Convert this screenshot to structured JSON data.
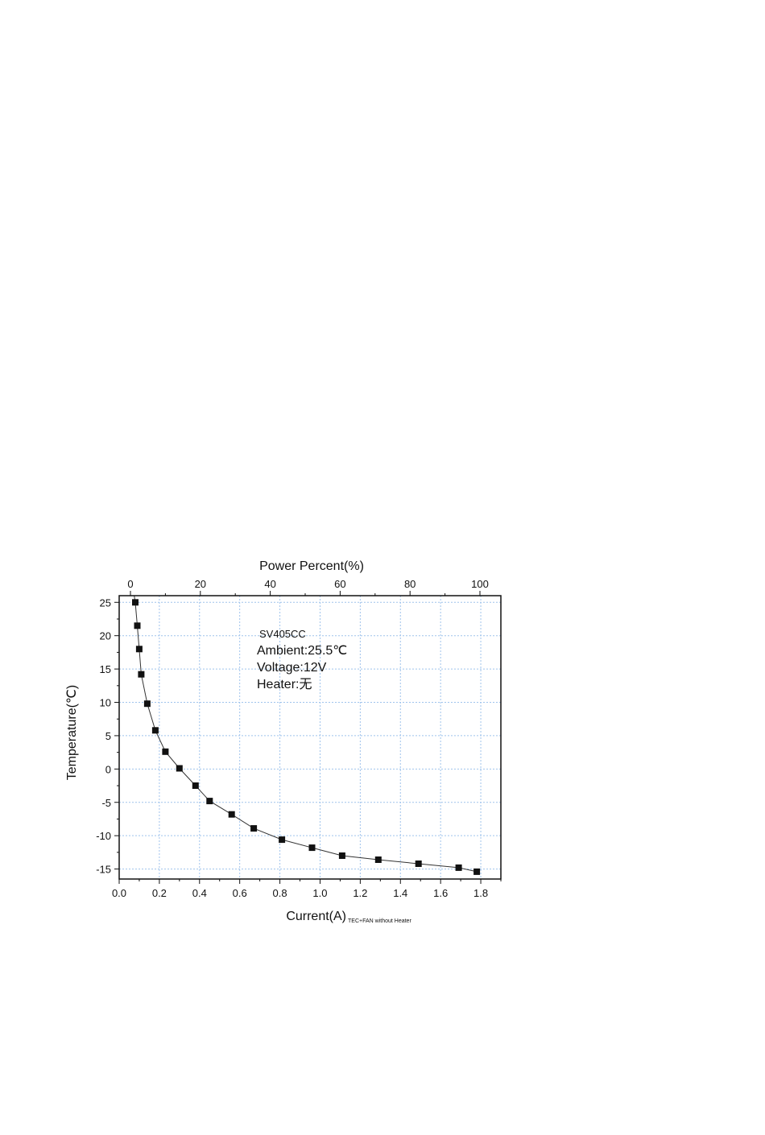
{
  "chart_data": {
    "type": "scatter",
    "xlabel": "Current(A)",
    "xlabel_subscript": "TEC+FAN without Heater",
    "ylabel": "Temperature(℃)",
    "top_xlabel": "Power Percent(%)",
    "xlim": [
      0.0,
      1.9
    ],
    "ylim": [
      -16.5,
      26
    ],
    "top_xlim": [
      0,
      100
    ],
    "x_ticks": [
      "0.0",
      "0.2",
      "0.4",
      "0.6",
      "0.8",
      "1.0",
      "1.2",
      "1.4",
      "1.6",
      "1.8"
    ],
    "y_ticks": [
      "25",
      "20",
      "15",
      "10",
      "5",
      "0",
      "-5",
      "-10",
      "-15"
    ],
    "top_ticks": [
      "0",
      "20",
      "40",
      "60",
      "80",
      "100"
    ],
    "grid": true,
    "series": [
      {
        "x": [
          0.08,
          0.09,
          0.1,
          0.11,
          0.14,
          0.18,
          0.23,
          0.3,
          0.38,
          0.45,
          0.56,
          0.67,
          0.81,
          0.96,
          1.11,
          1.29,
          1.49,
          1.69,
          1.78
        ],
        "y": [
          25,
          21.5,
          18,
          14.2,
          9.8,
          5.8,
          2.6,
          0.1,
          -2.5,
          -4.8,
          -6.8,
          -8.9,
          -10.6,
          -11.8,
          -13.0,
          -13.6,
          -14.2,
          -14.8,
          -15.4
        ]
      }
    ],
    "annotations": [
      "SV405CC",
      "Ambient:25.5℃",
      "Voltage:12V",
      "Heater:无"
    ]
  }
}
